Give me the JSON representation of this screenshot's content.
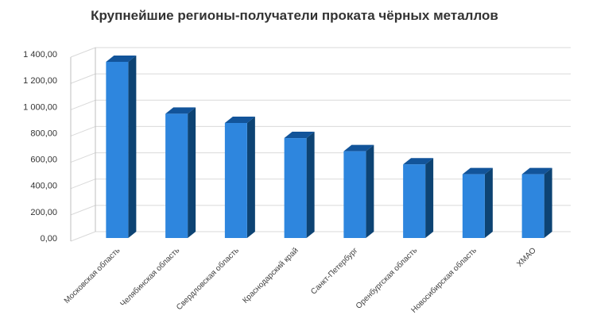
{
  "chart_data": {
    "type": "bar",
    "title": "Крупнейшие регионы-получатели проката чёрных металлов",
    "categories": [
      "Московская область",
      "Челябинская область",
      "Свердловская область",
      "Краснодарский край",
      "Санкт-Петербург",
      "Оренбургская область",
      "Новосибирская область",
      "ХМАО"
    ],
    "values": [
      1340,
      945,
      875,
      760,
      660,
      560,
      485,
      485
    ],
    "ylim": [
      0,
      1400
    ],
    "ytick_step": 200,
    "ytick_labels": [
      "0,00",
      "200,00",
      "400,00",
      "600,00",
      "800,00",
      "1 000,00",
      "1 200,00",
      "1 400,00"
    ],
    "grid": true,
    "legend": "none",
    "colors": {
      "bar_front": "#2e86de",
      "bar_side": "#0d4373",
      "bar_top": "#12549a",
      "grid": "#d9d9d9",
      "wall": "#bfbfbf"
    }
  }
}
